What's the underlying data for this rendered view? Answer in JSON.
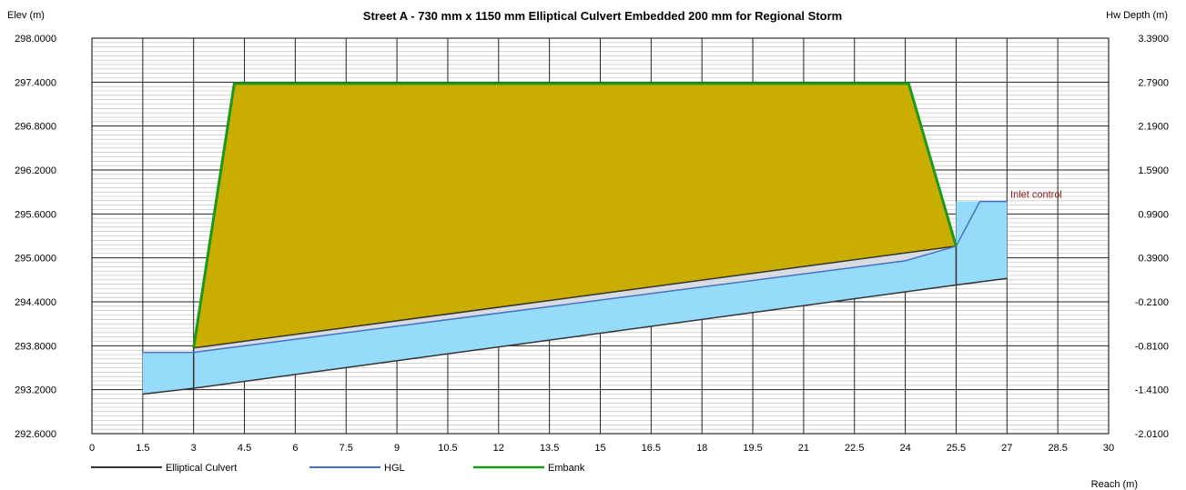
{
  "chart_data": {
    "type": "area",
    "title": "Street A - 730 mm x 1150 mm Elliptical Culvert Embedded 200 mm for Regional Storm",
    "ylabel": "Elev (m)",
    "y2label": "Hw Depth (m)",
    "xlabel": "Reach (m)",
    "xlim": [
      0,
      30
    ],
    "ylim": [
      292.6,
      298.0
    ],
    "y2lim": [
      -2.01,
      3.39
    ],
    "x_ticks": [
      "0",
      "1.5",
      "3",
      "4.5",
      "6",
      "7.5",
      "9",
      "10.5",
      "12",
      "13.5",
      "15",
      "16.5",
      "18",
      "19.5",
      "21",
      "22.5",
      "24",
      "25.5",
      "27",
      "28.5",
      "30"
    ],
    "y_ticks": [
      "292.6000",
      "293.2000",
      "293.8000",
      "294.4000",
      "295.0000",
      "295.6000",
      "296.2000",
      "296.8000",
      "297.4000",
      "298.0000"
    ],
    "y2_ticks": [
      "-2.0100",
      "-1.4100",
      "-0.8100",
      "-0.2100",
      "0.3900",
      "0.9900",
      "1.5900",
      "2.1900",
      "2.7900",
      "3.3900"
    ],
    "grid": true,
    "legend_position": "bottom-left",
    "series": [
      {
        "name": "Elliptical Culvert",
        "color": "#333333",
        "invert": [
          [
            1.5,
            293.14
          ],
          [
            3.0,
            293.22
          ],
          [
            25.5,
            294.63
          ],
          [
            27.0,
            294.72
          ]
        ],
        "obvert": [
          [
            3.0,
            293.77
          ],
          [
            25.5,
            295.16
          ]
        ]
      },
      {
        "name": "HGL",
        "color": "#4472c4",
        "values": [
          [
            1.5,
            293.71
          ],
          [
            3.0,
            293.71
          ],
          [
            24.0,
            294.96
          ],
          [
            25.5,
            295.16
          ],
          [
            26.2,
            295.77
          ],
          [
            27.0,
            295.77
          ]
        ]
      },
      {
        "name": "Embank",
        "color": "#1a9a1a",
        "values": [
          [
            3.0,
            293.77
          ],
          [
            4.2,
            297.38
          ],
          [
            24.1,
            297.38
          ],
          [
            25.5,
            295.16
          ]
        ]
      }
    ],
    "water_surface": [
      [
        1.5,
        293.71
      ],
      [
        3.0,
        293.71
      ],
      [
        24.0,
        294.96
      ],
      [
        25.5,
        295.16
      ],
      [
        25.5,
        295.77
      ],
      [
        27.0,
        295.77
      ]
    ],
    "colors": {
      "embankment_fill": "#c9ad00",
      "water_fill": "#96dcfa",
      "culvert_gap_fill": "#d9dbe2",
      "embank_line": "#1a9a1a",
      "hgl_line": "#4472c4",
      "culvert_line": "#333333"
    },
    "annotations": [
      {
        "text": "Inlet control",
        "x": 27.1,
        "y": 295.82
      }
    ]
  }
}
